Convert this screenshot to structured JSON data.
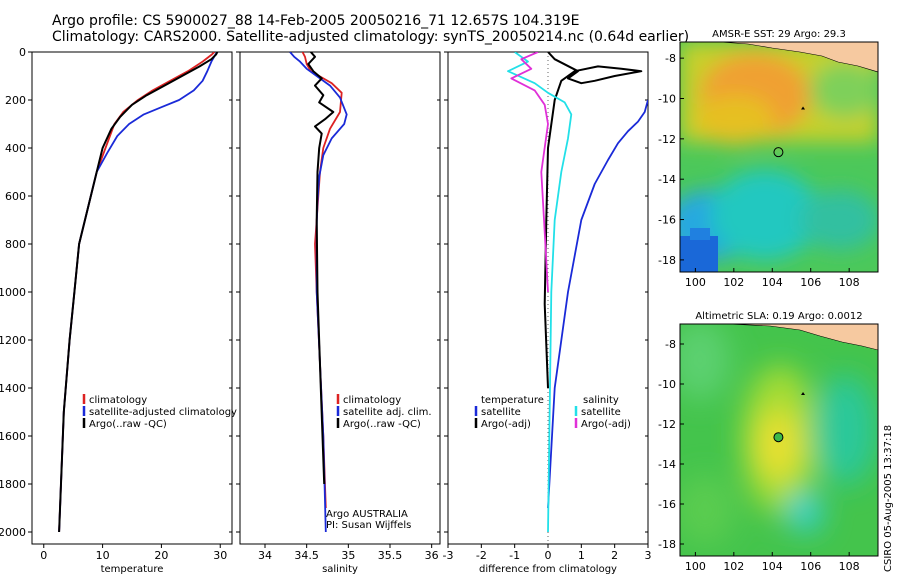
{
  "header": {
    "line1": "Argo profile: CS 5900027_88 14-Feb-2005 20050216_71 12.657S 104.319E",
    "line2": "Climatology: CARS2000. Satellite-adjusted climatology: synTS_20050214.nc (0.64d earlier)"
  },
  "credit": "CSIRO 05-Aug-2005 13:37:18",
  "colors": {
    "clim": "#dd2222",
    "sat": "#1a2ad8",
    "argo": "#000000",
    "sal_sat": "#22e0e8",
    "sal_argo": "#e030d8"
  },
  "chart_data": [
    {
      "type": "line",
      "panel": "temperature",
      "xlabel": "temperature",
      "ylabel": "",
      "xlim": [
        -2,
        32
      ],
      "ylim": [
        2050,
        0
      ],
      "y_reversed": true,
      "xticks": [
        0,
        10,
        20,
        30
      ],
      "yticks": [
        0,
        200,
        400,
        600,
        800,
        1000,
        1200,
        1400,
        1600,
        1800,
        2000
      ],
      "legend_position": "bottom-left",
      "series": [
        {
          "name": "climatology",
          "color": "#dd2222",
          "x": [
            29.0,
            28.6,
            27.0,
            24.5,
            21.5,
            18.5,
            16.0,
            13.5,
            12.0,
            10.5,
            9.0,
            7.5,
            6.0,
            5.2,
            4.4,
            3.4,
            2.6
          ],
          "y": [
            0,
            10,
            40,
            80,
            120,
            160,
            200,
            250,
            300,
            400,
            500,
            650,
            800,
            1000,
            1200,
            1500,
            2000
          ]
        },
        {
          "name": "satellite-adjusted climatology",
          "color": "#1a2ad8",
          "x": [
            29.5,
            29.2,
            28.5,
            27.8,
            27.0,
            25.5,
            23.0,
            20.0,
            17.0,
            14.5,
            12.5,
            10.8,
            9.0,
            7.5,
            6.0,
            5.2,
            4.4,
            3.4,
            2.6
          ],
          "y": [
            0,
            10,
            40,
            80,
            120,
            160,
            200,
            230,
            260,
            300,
            350,
            420,
            500,
            650,
            800,
            1000,
            1200,
            1500,
            2000
          ]
        },
        {
          "name": "Argo(..raw -QC)",
          "color": "#000000",
          "x": [
            29.5,
            29.3,
            28.5,
            26.5,
            23.5,
            20.5,
            17.5,
            15.0,
            13.0,
            11.5,
            10.0,
            9.0,
            7.5,
            6.0,
            5.2,
            4.4,
            3.4,
            2.6
          ],
          "y": [
            0,
            10,
            30,
            60,
            100,
            140,
            180,
            220,
            270,
            320,
            400,
            500,
            650,
            800,
            1000,
            1200,
            1500,
            2000
          ]
        }
      ],
      "legend": [
        "climatology",
        "satellite-adjusted climatology",
        "Argo(..raw -QC)"
      ]
    },
    {
      "type": "line",
      "panel": "salinity",
      "xlabel": "salinity",
      "xlim": [
        33.7,
        36.1
      ],
      "ylim": [
        2050,
        0
      ],
      "y_reversed": true,
      "xticks": [
        34,
        34.5,
        35,
        35.5,
        36
      ],
      "yticks": [
        0,
        200,
        400,
        600,
        800,
        1000,
        1200,
        1400,
        1600,
        1800,
        2000
      ],
      "legend_position": "bottom-right",
      "annotation": [
        "Argo AUSTRALIA",
        "PI: Susan Wijffels"
      ],
      "series": [
        {
          "name": "climatology",
          "color": "#dd2222",
          "x": [
            34.45,
            34.48,
            34.5,
            34.55,
            34.65,
            34.8,
            34.92,
            34.9,
            34.78,
            34.7,
            34.66,
            34.64,
            34.62,
            34.6,
            34.62,
            34.66,
            34.7,
            34.73
          ],
          "y": [
            0,
            20,
            50,
            80,
            100,
            130,
            170,
            250,
            320,
            400,
            500,
            600,
            700,
            800,
            1000,
            1300,
            1600,
            1900
          ]
        },
        {
          "name": "satellite adj. clim.",
          "color": "#1a2ad8",
          "x": [
            34.3,
            34.35,
            34.42,
            34.5,
            34.62,
            34.78,
            34.9,
            34.98,
            34.95,
            34.8,
            34.7,
            34.65,
            34.63,
            34.62,
            34.62,
            34.66,
            34.7,
            34.73
          ],
          "y": [
            0,
            20,
            40,
            70,
            100,
            140,
            190,
            260,
            300,
            360,
            430,
            520,
            620,
            720,
            1000,
            1300,
            1600,
            2000
          ]
        },
        {
          "name": "Argo(..raw -QC)",
          "color": "#000000",
          "x": [
            34.55,
            34.6,
            34.52,
            34.58,
            34.68,
            34.6,
            34.7,
            34.65,
            34.82,
            34.72,
            34.6,
            34.68,
            34.65,
            34.63,
            34.62,
            34.63,
            34.67,
            34.71
          ],
          "y": [
            0,
            20,
            50,
            80,
            110,
            140,
            180,
            210,
            250,
            280,
            310,
            340,
            400,
            500,
            700,
            1000,
            1400,
            1800
          ]
        }
      ],
      "legend": [
        "climatology",
        "satellite adj. clim.",
        "Argo(..raw -QC)"
      ]
    },
    {
      "type": "line",
      "panel": "difference",
      "xlabel": "difference from climatology",
      "xlim": [
        -3,
        3
      ],
      "ylim": [
        2050,
        0
      ],
      "y_reversed": true,
      "xticks": [
        -3,
        -2,
        -1,
        0,
        1,
        2,
        3
      ],
      "yticks": [
        0,
        200,
        400,
        600,
        800,
        1000,
        1200,
        1400,
        1600,
        1800,
        2000
      ],
      "legend_position": "bottom",
      "legend_groups": {
        "left_title": "temperature",
        "right_title": "salinity"
      },
      "series": [
        {
          "name": "satellite (temperature)",
          "color": "#1a2ad8",
          "x": [
            0.0,
            0.2,
            0.6,
            1.0,
            1.4,
            1.8,
            2.1,
            2.4,
            2.7,
            2.9,
            3.0
          ],
          "y": [
            1900,
            1400,
            1000,
            700,
            550,
            450,
            380,
            330,
            290,
            250,
            200
          ]
        },
        {
          "name": "Argo(-adj) (temperature)",
          "color": "#000000",
          "x": [
            0.0,
            0.2,
            0.9,
            0.6,
            1.0,
            1.4,
            2.0,
            2.8,
            2.2,
            1.5,
            0.8,
            0.4,
            0.2,
            0.0,
            -0.05,
            -0.1,
            0.0
          ],
          "y": [
            0,
            30,
            80,
            110,
            130,
            120,
            100,
            80,
            70,
            60,
            80,
            120,
            200,
            400,
            700,
            1050,
            1400
          ]
        },
        {
          "name": "satellite (salinity)",
          "color": "#22e0e8",
          "x": [
            -1.0,
            -0.6,
            -1.2,
            -0.4,
            0.0,
            0.5,
            0.7,
            0.6,
            0.4,
            0.2,
            0.1,
            0.0
          ],
          "y": [
            0,
            40,
            80,
            130,
            170,
            210,
            260,
            360,
            500,
            700,
            1000,
            2000
          ]
        },
        {
          "name": "Argo(-adj) (salinity)",
          "color": "#e030d8",
          "x": [
            -0.3,
            -0.8,
            -0.5,
            -1.1,
            -0.4,
            -0.1,
            0.0,
            -0.2,
            -0.1,
            0.0
          ],
          "y": [
            0,
            30,
            70,
            110,
            160,
            220,
            300,
            500,
            750,
            1000
          ]
        }
      ],
      "legend": [
        "satellite",
        "Argo(-adj)",
        "satellite",
        "Argo(-adj)"
      ]
    },
    {
      "type": "heatmap",
      "panel": "sst_map",
      "title": "AMSR-E SST: 29 Argo: 29.3",
      "xlim": [
        99.2,
        109.5
      ],
      "ylim": [
        -18.6,
        -7.2
      ],
      "xticks": [
        100,
        102,
        104,
        106,
        108
      ],
      "yticks": [
        -8,
        -10,
        -12,
        -14,
        -16,
        -18
      ],
      "marker": {
        "lon": 104.32,
        "lat": -12.66
      },
      "land_label": "Java coast (tan)"
    },
    {
      "type": "heatmap",
      "panel": "sla_map",
      "title": "Altimetric SLA: 0.19 Argo: 0.0012",
      "xlim": [
        99.2,
        109.5
      ],
      "ylim": [
        -18.6,
        -7.0
      ],
      "xticks": [
        100,
        102,
        104,
        106,
        108
      ],
      "yticks": [
        -8,
        -10,
        -12,
        -14,
        -16,
        -18
      ],
      "marker": {
        "lon": 104.32,
        "lat": -12.66
      },
      "land_label": "Java coast (tan)"
    }
  ]
}
